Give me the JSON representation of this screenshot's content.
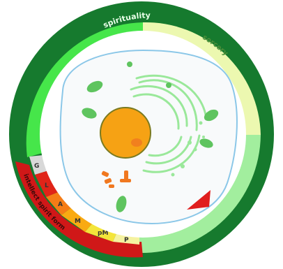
{
  "diagram": {
    "labels": {
      "top_left": "spirituality",
      "top_right": "sorcery",
      "bottom_left": "intellect spirit form"
    },
    "stage_letters": [
      "G",
      "L",
      "A",
      "M",
      "pM",
      "P"
    ],
    "colors": {
      "outer_ring": "#167A2E",
      "segment_bright_green": "#46E64A",
      "segment_pale_yellow": "#ECF8B0",
      "segment_light_green": "#A2EE9E",
      "segment_red": "#D01818",
      "stage_gray": "#D8D8D8",
      "stage_red": "#E02418",
      "stage_orange": "#F57C16",
      "stage_amber": "#F9AA12",
      "stage_yellow": "#F4E53A",
      "stage_pale_yellow": "#F5F2A0",
      "cell_membrane": "#8BC7E8",
      "cell_interior": "#F8FAFB",
      "nucleus_fill": "#F6A214",
      "nucleus_border": "#7A7A20",
      "organelle_green": "#5FC45F",
      "golgi_green": "#9AE89A",
      "centrosome_orange": "#F07820",
      "arrow_red": "#E01E1E"
    }
  }
}
